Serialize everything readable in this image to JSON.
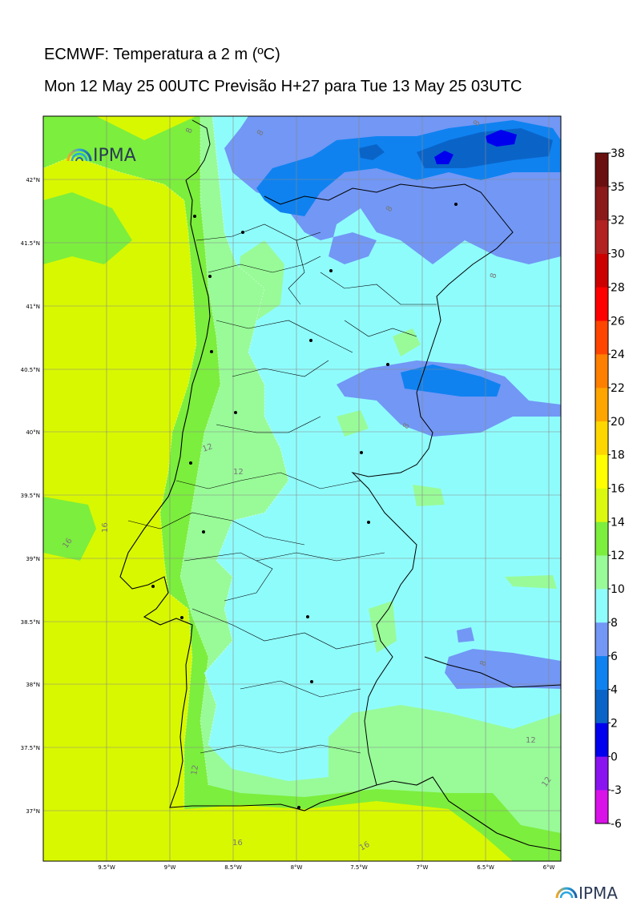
{
  "header": {
    "title": "ECMWF: Temperatura a 2 m (ºC)",
    "subtitle": "Mon 12 May 25 00UTC Previsão H+27 para Tue 13 May 25 03UTC"
  },
  "map": {
    "lat_labels": [
      "42°N",
      "41.5°N",
      "41°N",
      "40.5°N",
      "40°N",
      "39.5°N",
      "39°N",
      "38.5°N",
      "38°N",
      "37.5°N",
      "37°N"
    ],
    "lon_labels": [
      "9.5°W",
      "9°W",
      "8.5°W",
      "8°W",
      "7.5°W",
      "7°W",
      "6.5°W",
      "6°W"
    ],
    "contour_labels": [
      "8",
      "8",
      "8",
      "8",
      "8",
      "8",
      "8",
      "12",
      "12",
      "12",
      "12",
      "12",
      "16",
      "16",
      "16",
      "16"
    ]
  },
  "colorbar": {
    "ticks": [
      "38",
      "35",
      "32",
      "30",
      "28",
      "26",
      "24",
      "22",
      "20",
      "18",
      "16",
      "14",
      "12",
      "10",
      "8",
      "6",
      "4",
      "2",
      "0",
      "-3",
      "-6"
    ],
    "colors": [
      "#d912e8",
      "#8a14f0",
      "#0000ee",
      "#0a64c8",
      "#0f82f0",
      "#7297f5",
      "#8ffcfc",
      "#98fb98",
      "#7cee3d",
      "#dbf80f",
      "#ffff00",
      "#ffd700",
      "#ffa500",
      "#ff7f00",
      "#ff4500",
      "#ff0000",
      "#cd0000",
      "#b22222",
      "#8b1a1a",
      "#6b1010"
    ]
  },
  "logo": {
    "top_text": "IPMA",
    "bottom_text": "IPMA"
  },
  "colors": {
    "warm": "#d8f800",
    "w14": "#7cee3d",
    "w12": "#98fb98",
    "w10": "#8ffcfc",
    "c8": "#7297f5",
    "c6": "#0f82f0",
    "c4": "#0a64c8"
  }
}
